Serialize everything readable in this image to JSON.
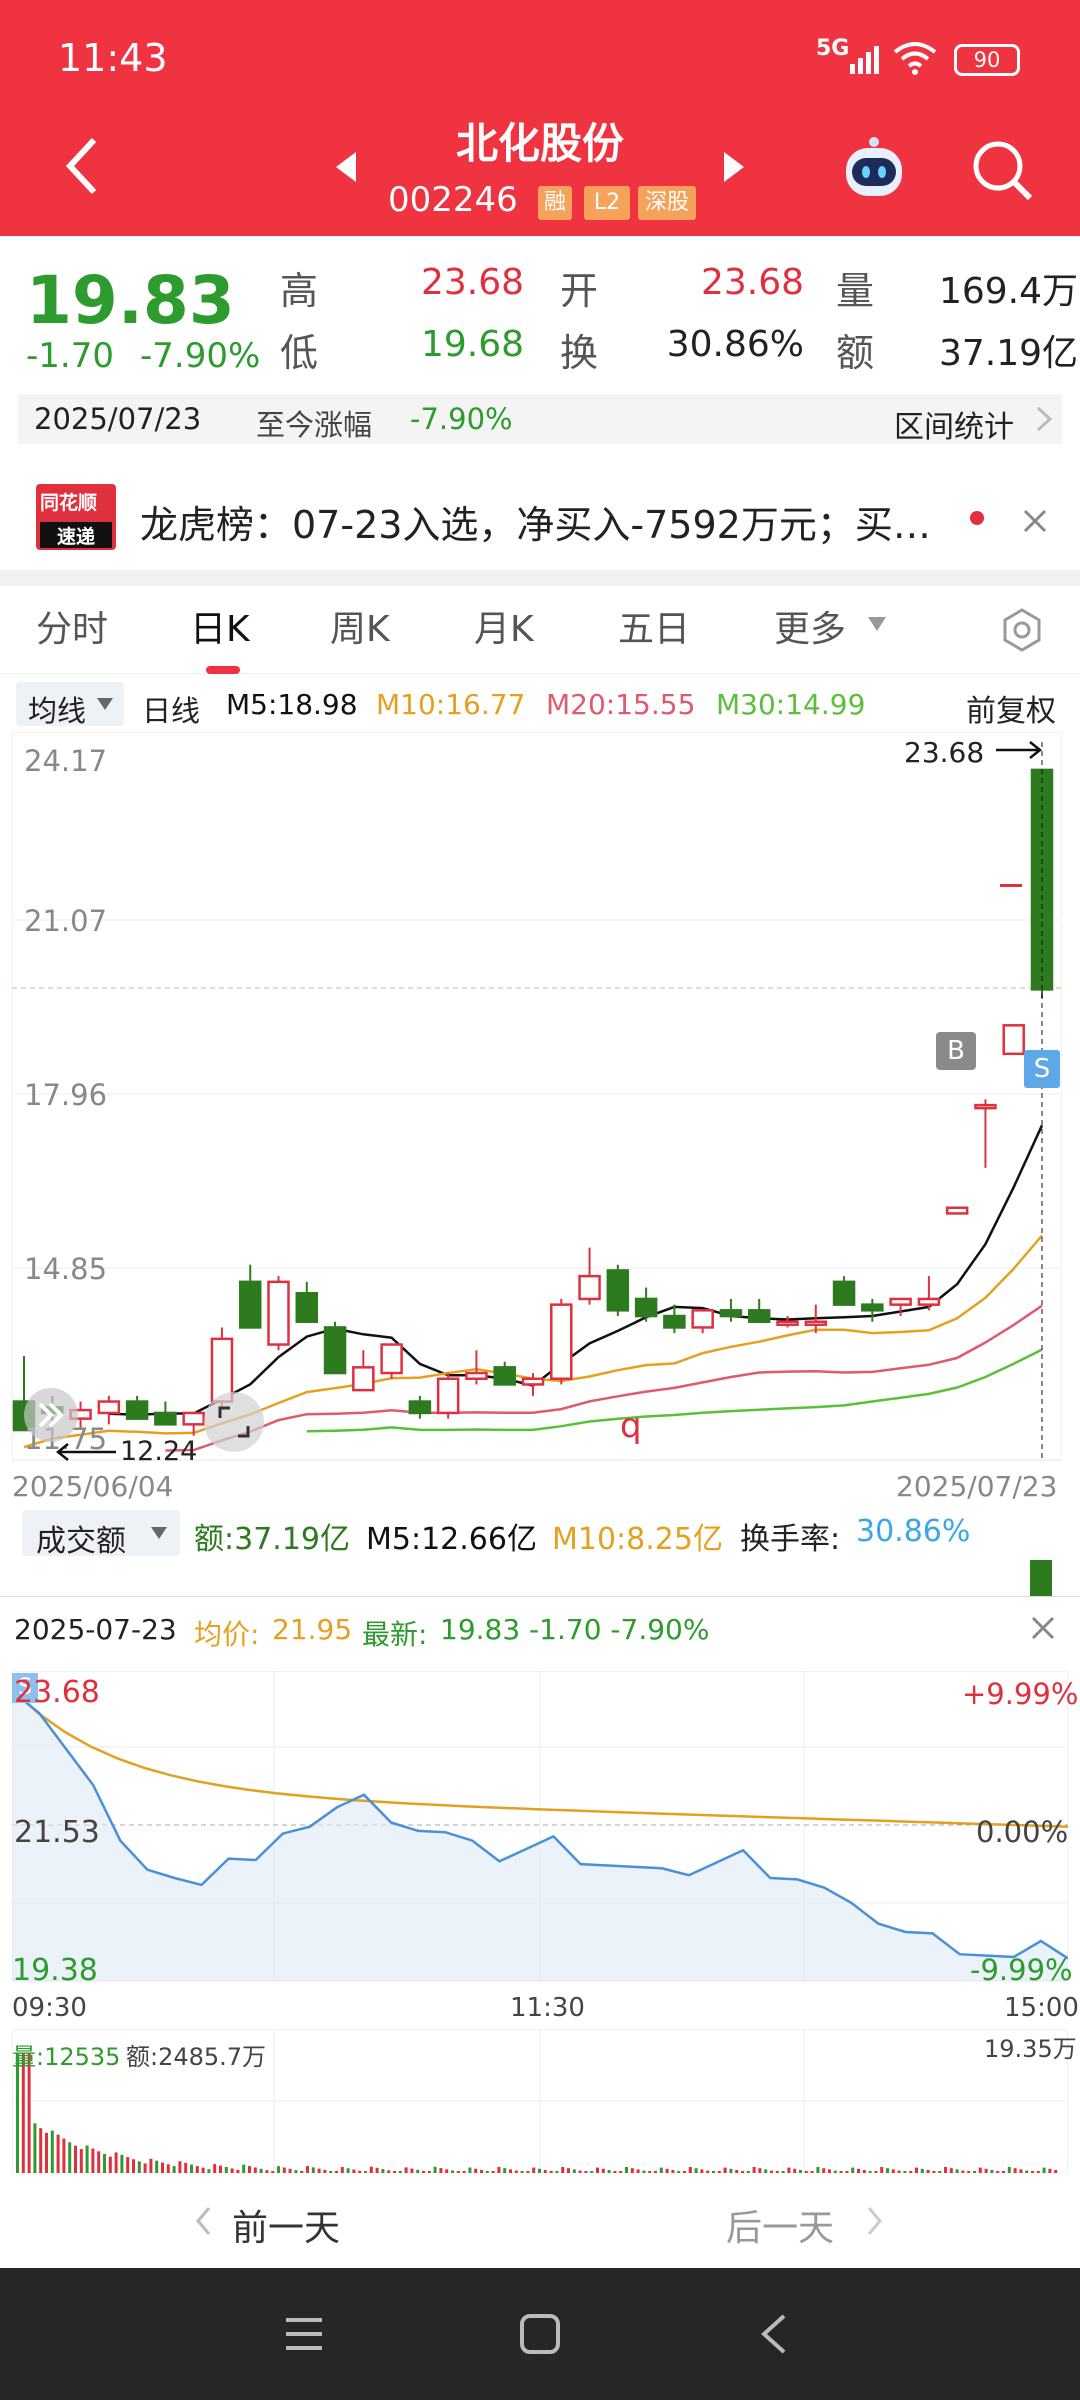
{
  "status": {
    "time": "11:43",
    "signal": "5G",
    "battery": "90"
  },
  "header": {
    "title": "北化股份",
    "code": "002246",
    "tags": [
      "融",
      "L2",
      "深股"
    ]
  },
  "quote": {
    "price": "19.83",
    "change": "-1.70",
    "change_pct": "-7.90%",
    "high_label": "高",
    "high": "23.68",
    "open_label": "开",
    "open": "23.68",
    "vol_label": "量",
    "vol": "169.4万",
    "low_label": "低",
    "low": "19.68",
    "turn_label": "换",
    "turn": "30.86%",
    "amt_label": "额",
    "amt": "37.19亿"
  },
  "range": {
    "date": "2025/07/23",
    "label": "至今涨幅",
    "value": "-7.90%",
    "stats": "区间统计"
  },
  "lhb": {
    "logo_top": "同花顺",
    "logo_bottom": "速递",
    "text": "龙虎榜：07-23入选，净买入-7592万元；买…"
  },
  "tabs": [
    "分时",
    "日K",
    "周K",
    "月K",
    "五日",
    "更多"
  ],
  "ma_bar": {
    "selector": "均线",
    "period": "日线",
    "m5": "M5:18.98",
    "m10": "M10:16.77",
    "m20": "M20:15.55",
    "m30": "M30:14.99",
    "adjust": "前复权"
  },
  "kline": {
    "y_labels": [
      "24.17",
      "21.07",
      "17.96",
      "14.85",
      "11.75"
    ],
    "start_date": "2025/06/04",
    "end_date": "2025/07/23",
    "high_marker": "23.68",
    "low_marker": "12.24",
    "marker_b": "B",
    "marker_s": "S",
    "marker_q": "q"
  },
  "volume": {
    "selector": "成交额",
    "amount": "额:37.19亿",
    "m5": "M5:12.66亿",
    "m10": "M10:8.25亿",
    "turnover_label": "换手率:",
    "turnover": "30.86%"
  },
  "intraday": {
    "date": "2025-07-23",
    "avg_label": "均价:",
    "avg": "21.95",
    "latest_label": "最新:",
    "latest": "19.83 -1.70 -7.90%",
    "y_top": "23.68",
    "y_mid": "21.53",
    "y_bot": "19.38",
    "pct_top": "+9.99%",
    "pct_mid": "0.00%",
    "pct_bot": "-9.99%",
    "t_start": "09:30",
    "t_mid": "11:30",
    "t_end": "15:00",
    "vol_label": "量:12535",
    "amt_label": "额:2485.7万",
    "vol_max": "19.35万",
    "prev": "前一天",
    "next": "后一天"
  },
  "chart_data": {
    "type": "candlestick",
    "title": "北化股份 日K",
    "x_range": [
      "2025/06/04",
      "2025/07/23"
    ],
    "ylim": [
      11.75,
      24.17
    ],
    "last_candle": {
      "date": "2025/07/23",
      "open": 23.68,
      "high": 23.68,
      "low": 19.68,
      "close": 19.83
    },
    "moving_averages": {
      "M5": 18.98,
      "M10": 16.77,
      "M20": 15.55,
      "M30": 14.99
    },
    "period_low": 12.24,
    "period_high": 23.68
  },
  "colors": {
    "up": "#e0303e",
    "down": "#2d7a1f",
    "brand": "#ef3340",
    "m5": "#111111",
    "m10": "#e6a020",
    "m20": "#e05a6e",
    "m30": "#5bbf3a"
  }
}
